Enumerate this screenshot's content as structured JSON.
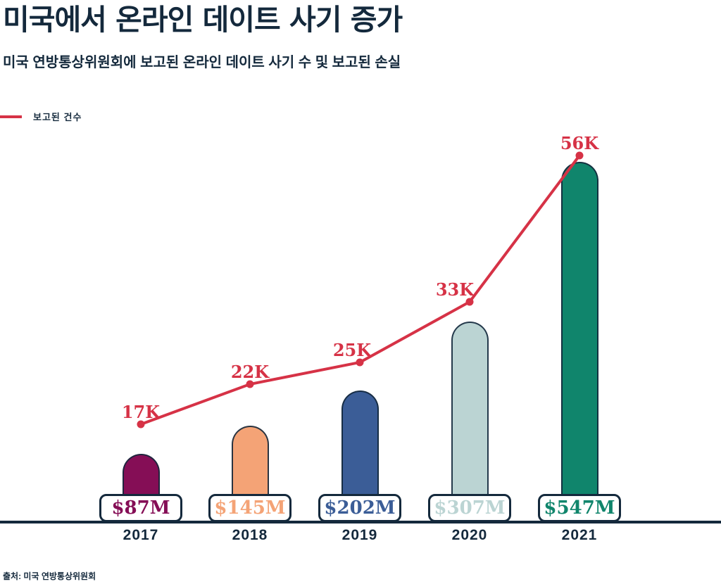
{
  "page": {
    "title": "미국에서 온라인 데이트 사기 증가",
    "subtitle": "미국 연방통상위원회에 보고된 온라인 데이트 사기 수 및 보고된 손실",
    "source": "출처: 미국 연방통상위원회"
  },
  "legend": {
    "items": [
      {
        "label": "보고된 건수",
        "color": "#d63246",
        "type": "line"
      }
    ]
  },
  "colors": {
    "background": "#ffffff",
    "text": "#14293c",
    "axis": "#14293c",
    "trend_line": "#d63246",
    "chip_background": "#ffffff",
    "chip_border": "#14293c"
  },
  "chart_data": {
    "type": "bar",
    "title": "미국에서 온라인 데이트 사기 증가",
    "subtitle": "미국 연방통상위원회에 보고된 온라인 데이트 사기 수 및 보고된 손실",
    "categories": [
      "2017",
      "2018",
      "2019",
      "2020",
      "2021"
    ],
    "series": [
      {
        "name": "보고된 손실",
        "type": "bar",
        "values_million_usd": [
          87,
          145,
          202,
          307,
          547
        ],
        "labels": [
          "$87M",
          "$145M",
          "$202M",
          "$307M",
          "$547M"
        ],
        "bar_colors": [
          "#850e56",
          "#f4a376",
          "#3b5d97",
          "#bbd4d3",
          "#10856c"
        ]
      },
      {
        "name": "보고된 건수",
        "type": "line",
        "values_thousands": [
          17,
          22,
          25,
          33,
          56
        ],
        "labels": [
          "17K",
          "22K",
          "25K",
          "33K",
          "56K"
        ],
        "color": "#d63246"
      }
    ],
    "legend_position": "top-left",
    "grid": false,
    "source": "출처: 미국 연방통상위원회"
  }
}
